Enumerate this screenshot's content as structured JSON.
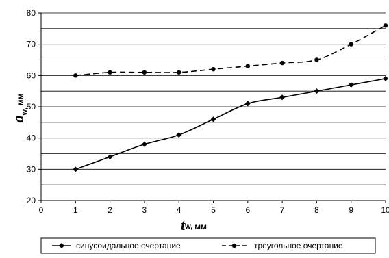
{
  "chart_data": {
    "type": "line",
    "x": [
      1,
      2,
      3,
      4,
      5,
      6,
      7,
      8,
      9,
      10
    ],
    "series": [
      {
        "name": "синусоидальное очертание",
        "values": [
          30,
          34,
          38,
          41,
          46,
          51,
          53,
          55,
          57,
          59
        ],
        "line_style": "solid",
        "marker": "diamond",
        "color": "#000000"
      },
      {
        "name": "треугольное очертание",
        "values": [
          60,
          61,
          61,
          61,
          62,
          63,
          64,
          65,
          70,
          76
        ],
        "line_style": "dashed",
        "marker": "circle",
        "color": "#000000"
      }
    ],
    "xlim": [
      0,
      10
    ],
    "ylim": [
      20,
      80
    ],
    "xticks": [
      0,
      1,
      2,
      3,
      4,
      5,
      6,
      7,
      8,
      9,
      10
    ],
    "yticks": [
      20,
      30,
      40,
      50,
      60,
      70,
      80
    ],
    "y_gridlines": [
      25,
      30,
      35,
      40,
      45,
      50,
      55,
      60,
      65,
      70,
      75,
      80
    ],
    "grid": "horizontal",
    "xlabel": {
      "main": "t",
      "sub": "w,",
      "unit": "мм"
    },
    "ylabel": {
      "main": "a",
      "sub": "w,",
      "unit": "мм"
    },
    "legend_position": "bottom"
  }
}
